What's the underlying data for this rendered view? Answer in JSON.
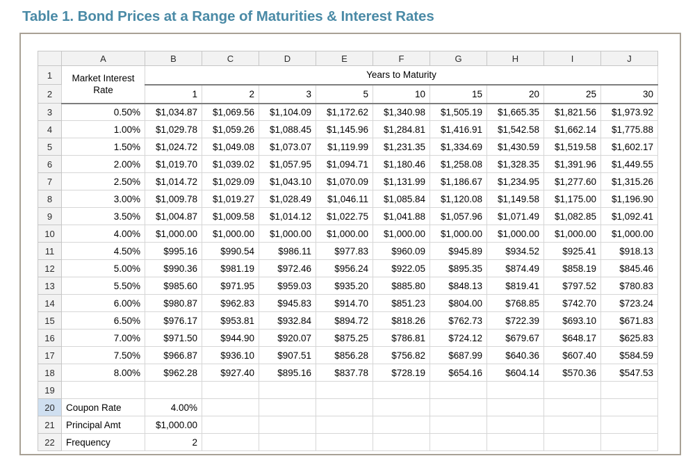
{
  "title": "Table 1. Bond Prices at a Range of Maturities & Interest Rates",
  "colors": {
    "title_accent": "#4a8aa6",
    "figure_border": "#a8a195",
    "header_fill": "#f2f2f2",
    "highlighted_row_header_fill": "#cfdff0",
    "gridline": "#d6d6d6",
    "header_separator": "#7d7d7d"
  },
  "sheet": {
    "column_letters": [
      "A",
      "B",
      "C",
      "D",
      "E",
      "F",
      "G",
      "H",
      "I",
      "J"
    ],
    "corner_label": "",
    "row1": {
      "number": "1",
      "a_label": "Market Interest Rate",
      "years_header": "Years to Maturity"
    },
    "row2": {
      "number": "2",
      "maturities": [
        "1",
        "2",
        "3",
        "5",
        "10",
        "15",
        "20",
        "25",
        "30"
      ]
    },
    "data_rows": [
      {
        "number": "3",
        "rate": "0.50%",
        "prices": [
          "$1,034.87",
          "$1,069.56",
          "$1,104.09",
          "$1,172.62",
          "$1,340.98",
          "$1,505.19",
          "$1,665.35",
          "$1,821.56",
          "$1,973.92"
        ]
      },
      {
        "number": "4",
        "rate": "1.00%",
        "prices": [
          "$1,029.78",
          "$1,059.26",
          "$1,088.45",
          "$1,145.96",
          "$1,284.81",
          "$1,416.91",
          "$1,542.58",
          "$1,662.14",
          "$1,775.88"
        ]
      },
      {
        "number": "5",
        "rate": "1.50%",
        "prices": [
          "$1,024.72",
          "$1,049.08",
          "$1,073.07",
          "$1,119.99",
          "$1,231.35",
          "$1,334.69",
          "$1,430.59",
          "$1,519.58",
          "$1,602.17"
        ]
      },
      {
        "number": "6",
        "rate": "2.00%",
        "prices": [
          "$1,019.70",
          "$1,039.02",
          "$1,057.95",
          "$1,094.71",
          "$1,180.46",
          "$1,258.08",
          "$1,328.35",
          "$1,391.96",
          "$1,449.55"
        ]
      },
      {
        "number": "7",
        "rate": "2.50%",
        "prices": [
          "$1,014.72",
          "$1,029.09",
          "$1,043.10",
          "$1,070.09",
          "$1,131.99",
          "$1,186.67",
          "$1,234.95",
          "$1,277.60",
          "$1,315.26"
        ]
      },
      {
        "number": "8",
        "rate": "3.00%",
        "prices": [
          "$1,009.78",
          "$1,019.27",
          "$1,028.49",
          "$1,046.11",
          "$1,085.84",
          "$1,120.08",
          "$1,149.58",
          "$1,175.00",
          "$1,196.90"
        ]
      },
      {
        "number": "9",
        "rate": "3.50%",
        "prices": [
          "$1,004.87",
          "$1,009.58",
          "$1,014.12",
          "$1,022.75",
          "$1,041.88",
          "$1,057.96",
          "$1,071.49",
          "$1,082.85",
          "$1,092.41"
        ]
      },
      {
        "number": "10",
        "rate": "4.00%",
        "prices": [
          "$1,000.00",
          "$1,000.00",
          "$1,000.00",
          "$1,000.00",
          "$1,000.00",
          "$1,000.00",
          "$1,000.00",
          "$1,000.00",
          "$1,000.00"
        ]
      },
      {
        "number": "11",
        "rate": "4.50%",
        "prices": [
          "$995.16",
          "$990.54",
          "$986.11",
          "$977.83",
          "$960.09",
          "$945.89",
          "$934.52",
          "$925.41",
          "$918.13"
        ]
      },
      {
        "number": "12",
        "rate": "5.00%",
        "prices": [
          "$990.36",
          "$981.19",
          "$972.46",
          "$956.24",
          "$922.05",
          "$895.35",
          "$874.49",
          "$858.19",
          "$845.46"
        ]
      },
      {
        "number": "13",
        "rate": "5.50%",
        "prices": [
          "$985.60",
          "$971.95",
          "$959.03",
          "$935.20",
          "$885.80",
          "$848.13",
          "$819.41",
          "$797.52",
          "$780.83"
        ]
      },
      {
        "number": "14",
        "rate": "6.00%",
        "prices": [
          "$980.87",
          "$962.83",
          "$945.83",
          "$914.70",
          "$851.23",
          "$804.00",
          "$768.85",
          "$742.70",
          "$723.24"
        ]
      },
      {
        "number": "15",
        "rate": "6.50%",
        "prices": [
          "$976.17",
          "$953.81",
          "$932.84",
          "$894.72",
          "$818.26",
          "$762.73",
          "$722.39",
          "$693.10",
          "$671.83"
        ]
      },
      {
        "number": "16",
        "rate": "7.00%",
        "prices": [
          "$971.50",
          "$944.90",
          "$920.07",
          "$875.25",
          "$786.81",
          "$724.12",
          "$679.67",
          "$648.17",
          "$625.83"
        ]
      },
      {
        "number": "17",
        "rate": "7.50%",
        "prices": [
          "$966.87",
          "$936.10",
          "$907.51",
          "$856.28",
          "$756.82",
          "$687.99",
          "$640.36",
          "$607.40",
          "$584.59"
        ]
      },
      {
        "number": "18",
        "rate": "8.00%",
        "prices": [
          "$962.28",
          "$927.40",
          "$895.16",
          "$837.78",
          "$728.19",
          "$654.16",
          "$604.14",
          "$570.36",
          "$547.53"
        ]
      }
    ],
    "empty_row": {
      "number": "19"
    },
    "footer_rows": [
      {
        "number": "20",
        "label": "Coupon Rate",
        "value": "4.00%",
        "highlighted": true
      },
      {
        "number": "21",
        "label": "Principal Amt",
        "value": "$1,000.00",
        "highlighted": false
      },
      {
        "number": "22",
        "label": "Frequency",
        "value": "2",
        "highlighted": false
      }
    ]
  }
}
